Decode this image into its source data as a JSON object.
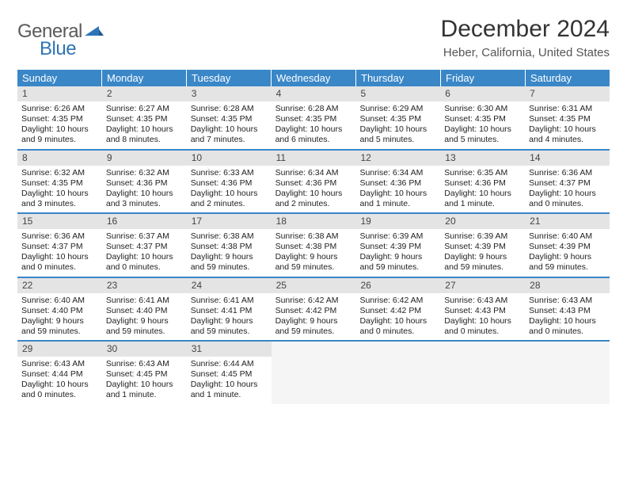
{
  "logo": {
    "text_general": "General",
    "text_blue": "Blue",
    "shape_color": "#2d74b5"
  },
  "header": {
    "title": "December 2024",
    "location": "Heber, California, United States"
  },
  "colors": {
    "header_bg": "#3a87c8",
    "header_text": "#ffffff",
    "daynum_bg": "#e4e4e4",
    "week_border": "#3a87c8",
    "empty_bg": "#f5f5f5",
    "body_text": "#222222"
  },
  "weekdays": [
    "Sunday",
    "Monday",
    "Tuesday",
    "Wednesday",
    "Thursday",
    "Friday",
    "Saturday"
  ],
  "weeks": [
    [
      {
        "day": "1",
        "sunrise": "Sunrise: 6:26 AM",
        "sunset": "Sunset: 4:35 PM",
        "daylight1": "Daylight: 10 hours",
        "daylight2": "and 9 minutes."
      },
      {
        "day": "2",
        "sunrise": "Sunrise: 6:27 AM",
        "sunset": "Sunset: 4:35 PM",
        "daylight1": "Daylight: 10 hours",
        "daylight2": "and 8 minutes."
      },
      {
        "day": "3",
        "sunrise": "Sunrise: 6:28 AM",
        "sunset": "Sunset: 4:35 PM",
        "daylight1": "Daylight: 10 hours",
        "daylight2": "and 7 minutes."
      },
      {
        "day": "4",
        "sunrise": "Sunrise: 6:28 AM",
        "sunset": "Sunset: 4:35 PM",
        "daylight1": "Daylight: 10 hours",
        "daylight2": "and 6 minutes."
      },
      {
        "day": "5",
        "sunrise": "Sunrise: 6:29 AM",
        "sunset": "Sunset: 4:35 PM",
        "daylight1": "Daylight: 10 hours",
        "daylight2": "and 5 minutes."
      },
      {
        "day": "6",
        "sunrise": "Sunrise: 6:30 AM",
        "sunset": "Sunset: 4:35 PM",
        "daylight1": "Daylight: 10 hours",
        "daylight2": "and 5 minutes."
      },
      {
        "day": "7",
        "sunrise": "Sunrise: 6:31 AM",
        "sunset": "Sunset: 4:35 PM",
        "daylight1": "Daylight: 10 hours",
        "daylight2": "and 4 minutes."
      }
    ],
    [
      {
        "day": "8",
        "sunrise": "Sunrise: 6:32 AM",
        "sunset": "Sunset: 4:35 PM",
        "daylight1": "Daylight: 10 hours",
        "daylight2": "and 3 minutes."
      },
      {
        "day": "9",
        "sunrise": "Sunrise: 6:32 AM",
        "sunset": "Sunset: 4:36 PM",
        "daylight1": "Daylight: 10 hours",
        "daylight2": "and 3 minutes."
      },
      {
        "day": "10",
        "sunrise": "Sunrise: 6:33 AM",
        "sunset": "Sunset: 4:36 PM",
        "daylight1": "Daylight: 10 hours",
        "daylight2": "and 2 minutes."
      },
      {
        "day": "11",
        "sunrise": "Sunrise: 6:34 AM",
        "sunset": "Sunset: 4:36 PM",
        "daylight1": "Daylight: 10 hours",
        "daylight2": "and 2 minutes."
      },
      {
        "day": "12",
        "sunrise": "Sunrise: 6:34 AM",
        "sunset": "Sunset: 4:36 PM",
        "daylight1": "Daylight: 10 hours",
        "daylight2": "and 1 minute."
      },
      {
        "day": "13",
        "sunrise": "Sunrise: 6:35 AM",
        "sunset": "Sunset: 4:36 PM",
        "daylight1": "Daylight: 10 hours",
        "daylight2": "and 1 minute."
      },
      {
        "day": "14",
        "sunrise": "Sunrise: 6:36 AM",
        "sunset": "Sunset: 4:37 PM",
        "daylight1": "Daylight: 10 hours",
        "daylight2": "and 0 minutes."
      }
    ],
    [
      {
        "day": "15",
        "sunrise": "Sunrise: 6:36 AM",
        "sunset": "Sunset: 4:37 PM",
        "daylight1": "Daylight: 10 hours",
        "daylight2": "and 0 minutes."
      },
      {
        "day": "16",
        "sunrise": "Sunrise: 6:37 AM",
        "sunset": "Sunset: 4:37 PM",
        "daylight1": "Daylight: 10 hours",
        "daylight2": "and 0 minutes."
      },
      {
        "day": "17",
        "sunrise": "Sunrise: 6:38 AM",
        "sunset": "Sunset: 4:38 PM",
        "daylight1": "Daylight: 9 hours",
        "daylight2": "and 59 minutes."
      },
      {
        "day": "18",
        "sunrise": "Sunrise: 6:38 AM",
        "sunset": "Sunset: 4:38 PM",
        "daylight1": "Daylight: 9 hours",
        "daylight2": "and 59 minutes."
      },
      {
        "day": "19",
        "sunrise": "Sunrise: 6:39 AM",
        "sunset": "Sunset: 4:39 PM",
        "daylight1": "Daylight: 9 hours",
        "daylight2": "and 59 minutes."
      },
      {
        "day": "20",
        "sunrise": "Sunrise: 6:39 AM",
        "sunset": "Sunset: 4:39 PM",
        "daylight1": "Daylight: 9 hours",
        "daylight2": "and 59 minutes."
      },
      {
        "day": "21",
        "sunrise": "Sunrise: 6:40 AM",
        "sunset": "Sunset: 4:39 PM",
        "daylight1": "Daylight: 9 hours",
        "daylight2": "and 59 minutes."
      }
    ],
    [
      {
        "day": "22",
        "sunrise": "Sunrise: 6:40 AM",
        "sunset": "Sunset: 4:40 PM",
        "daylight1": "Daylight: 9 hours",
        "daylight2": "and 59 minutes."
      },
      {
        "day": "23",
        "sunrise": "Sunrise: 6:41 AM",
        "sunset": "Sunset: 4:40 PM",
        "daylight1": "Daylight: 9 hours",
        "daylight2": "and 59 minutes."
      },
      {
        "day": "24",
        "sunrise": "Sunrise: 6:41 AM",
        "sunset": "Sunset: 4:41 PM",
        "daylight1": "Daylight: 9 hours",
        "daylight2": "and 59 minutes."
      },
      {
        "day": "25",
        "sunrise": "Sunrise: 6:42 AM",
        "sunset": "Sunset: 4:42 PM",
        "daylight1": "Daylight: 9 hours",
        "daylight2": "and 59 minutes."
      },
      {
        "day": "26",
        "sunrise": "Sunrise: 6:42 AM",
        "sunset": "Sunset: 4:42 PM",
        "daylight1": "Daylight: 10 hours",
        "daylight2": "and 0 minutes."
      },
      {
        "day": "27",
        "sunrise": "Sunrise: 6:43 AM",
        "sunset": "Sunset: 4:43 PM",
        "daylight1": "Daylight: 10 hours",
        "daylight2": "and 0 minutes."
      },
      {
        "day": "28",
        "sunrise": "Sunrise: 6:43 AM",
        "sunset": "Sunset: 4:43 PM",
        "daylight1": "Daylight: 10 hours",
        "daylight2": "and 0 minutes."
      }
    ],
    [
      {
        "day": "29",
        "sunrise": "Sunrise: 6:43 AM",
        "sunset": "Sunset: 4:44 PM",
        "daylight1": "Daylight: 10 hours",
        "daylight2": "and 0 minutes."
      },
      {
        "day": "30",
        "sunrise": "Sunrise: 6:43 AM",
        "sunset": "Sunset: 4:45 PM",
        "daylight1": "Daylight: 10 hours",
        "daylight2": "and 1 minute."
      },
      {
        "day": "31",
        "sunrise": "Sunrise: 6:44 AM",
        "sunset": "Sunset: 4:45 PM",
        "daylight1": "Daylight: 10 hours",
        "daylight2": "and 1 minute."
      },
      null,
      null,
      null,
      null
    ]
  ]
}
